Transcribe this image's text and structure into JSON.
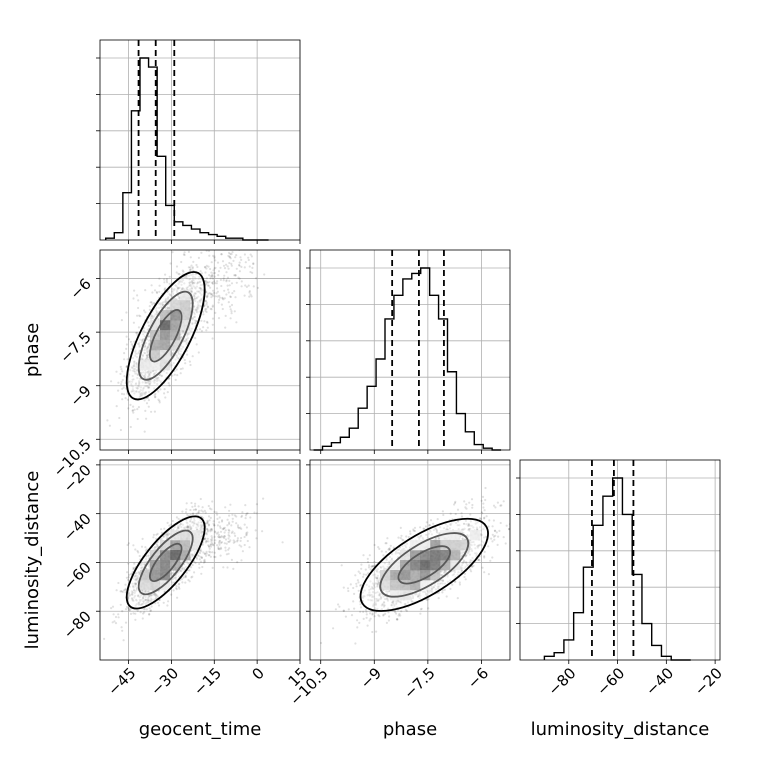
{
  "chart_data": {
    "type": "corner",
    "parameters": [
      "geocent_time",
      "phase",
      "luminosity_distance"
    ],
    "grid": true,
    "quantile_lines": "dashed",
    "histograms": [
      {
        "parameter": "geocent_time",
        "range": [
          -55,
          15
        ],
        "ticks": [
          -45,
          -30,
          -15,
          0,
          15
        ],
        "quantiles": [
          -41.5,
          -35.5,
          -29
        ],
        "bin_edges": [
          -53,
          -50,
          -47,
          -44,
          -41,
          -38,
          -35,
          -32,
          -29,
          -26,
          -23,
          -20,
          -17,
          -14,
          -11,
          -8,
          -5,
          -2,
          1,
          4
        ],
        "counts": [
          0.01,
          0.04,
          0.26,
          0.71,
          1.0,
          0.95,
          0.46,
          0.19,
          0.1,
          0.08,
          0.06,
          0.04,
          0.03,
          0.02,
          0.01,
          0.01,
          0.0,
          0.0,
          0.0
        ]
      },
      {
        "parameter": "phase",
        "range": [
          -10.8,
          -5.2
        ],
        "ticks": [
          -10.5,
          -9.0,
          -7.5,
          -6.0
        ],
        "quantiles": [
          -8.5,
          -7.75,
          -7.05
        ],
        "bin_edges": [
          -10.7,
          -10.45,
          -10.2,
          -9.95,
          -9.7,
          -9.45,
          -9.2,
          -8.95,
          -8.7,
          -8.45,
          -8.2,
          -7.95,
          -7.7,
          -7.45,
          -7.2,
          -6.95,
          -6.7,
          -6.45,
          -6.2,
          -5.95,
          -5.7,
          -5.45
        ],
        "counts": [
          0.0,
          0.02,
          0.04,
          0.07,
          0.12,
          0.23,
          0.35,
          0.5,
          0.72,
          0.85,
          0.94,
          0.97,
          1.0,
          0.85,
          0.72,
          0.43,
          0.2,
          0.1,
          0.03,
          0.01,
          0.0
        ]
      },
      {
        "parameter": "luminosity_distance",
        "range": [
          -100,
          -18
        ],
        "ticks": [
          -80,
          -60,
          -40,
          -20
        ],
        "quantiles": [
          -70.5,
          -61.5,
          -53.5
        ],
        "bin_edges": [
          -90,
          -86,
          -82,
          -78,
          -74,
          -70,
          -66,
          -62,
          -58,
          -54,
          -50,
          -46,
          -42,
          -38,
          -34,
          -30
        ],
        "counts": [
          0.02,
          0.04,
          0.11,
          0.26,
          0.51,
          0.74,
          0.9,
          1.0,
          0.8,
          0.47,
          0.2,
          0.08,
          0.02,
          0.0,
          0.0
        ]
      }
    ],
    "pairs": [
      {
        "x": "geocent_time",
        "y": "phase",
        "xrange": [
          -55,
          15
        ],
        "yrange": [
          -10.8,
          -5.2
        ],
        "yticks": [
          -10.5,
          -9.0,
          -7.5,
          -6.0
        ],
        "mean": [
          -32,
          -7.6
        ],
        "sd": [
          6.5,
          0.85
        ],
        "corr": 0.72,
        "tail": {
          "x": [
            -35,
            -5
          ],
          "y": [
            -7.2,
            -5.8
          ]
        }
      },
      {
        "x": "geocent_time",
        "y": "luminosity_distance",
        "xrange": [
          -55,
          15
        ],
        "yrange": [
          -100,
          -18
        ],
        "yticks": [
          -80,
          -60,
          -40,
          -20
        ],
        "mean": [
          -32,
          -60
        ],
        "sd": [
          6.5,
          9
        ],
        "corr": 0.75,
        "tail": {
          "x": [
            -35,
            -5
          ],
          "y": [
            -62,
            -45
          ]
        }
      },
      {
        "x": "phase",
        "y": "luminosity_distance",
        "xrange": [
          -10.8,
          -5.2
        ],
        "yrange": [
          -100,
          -18
        ],
        "xticks": [
          -10.5,
          -9.0,
          -7.5,
          -6.0
        ],
        "yticks": [
          -80,
          -60,
          -40,
          -20
        ],
        "mean": [
          -7.6,
          -61
        ],
        "sd": [
          0.85,
          9
        ],
        "corr": 0.68
      }
    ],
    "xlabels": [
      "geocent_time",
      "phase",
      "luminosity_distance"
    ],
    "ylabels": [
      "phase",
      "luminosity_distance"
    ]
  }
}
